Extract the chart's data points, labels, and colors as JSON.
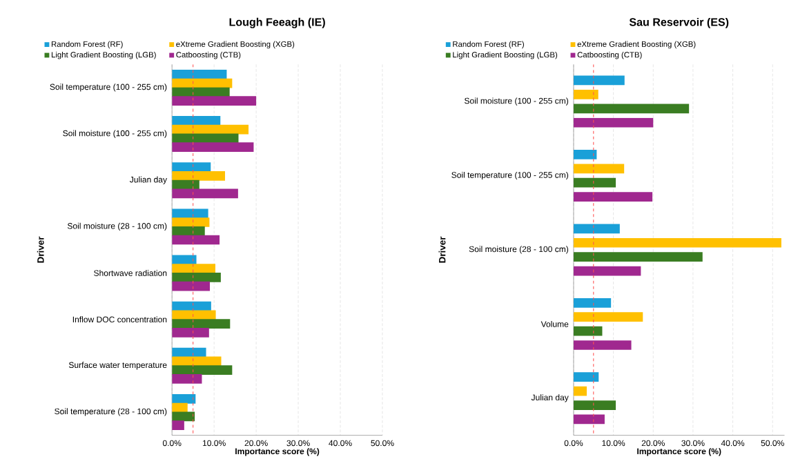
{
  "chart_data": [
    {
      "type": "bar",
      "orientation": "horizontal",
      "title": "Lough Feeagh (IE)",
      "xlabel": "Importance score (%)",
      "ylabel": "Driver",
      "categories": [
        "Soil temperature (100 - 255 cm)",
        "Soil moisture (100 - 255 cm)",
        "Julian day",
        "Soil moisture (28 - 100 cm)",
        "Shortwave radiation",
        "Inflow DOC concentration",
        "Surface water temperature",
        "Soil temperature (28 - 100 cm)"
      ],
      "series": [
        {
          "name": "Random Forest (RF)",
          "color": "#1aa0d8",
          "values": [
            13.0,
            11.5,
            9.2,
            8.6,
            5.8,
            9.3,
            8.1,
            5.6
          ]
        },
        {
          "name": "eXtreme Gradient Boosting (XGB)",
          "color": "#ffc000",
          "values": [
            14.3,
            18.2,
            12.6,
            8.9,
            10.3,
            10.4,
            11.7,
            3.7
          ]
        },
        {
          "name": "Light Gradient Boosting (LGB)",
          "color": "#3a7d22",
          "values": [
            13.7,
            15.8,
            6.5,
            7.8,
            11.6,
            13.8,
            14.3,
            5.4
          ]
        },
        {
          "name": "Catboosting (CTB)",
          "color": "#a0288f",
          "values": [
            20.0,
            19.4,
            15.7,
            11.3,
            9.0,
            8.8,
            7.1,
            2.9
          ]
        }
      ],
      "xlim": [
        0,
        50
      ],
      "xticks": [
        {
          "value": 0,
          "label": "0.0%"
        },
        {
          "value": 10,
          "label": "10.0%"
        },
        {
          "value": 20,
          "label": "20.0%"
        },
        {
          "value": 30,
          "label": "30.0%"
        },
        {
          "value": 40,
          "label": "40.0%"
        },
        {
          "value": 50,
          "label": "50.0%"
        }
      ],
      "grid": "x",
      "legend": "top",
      "ref_lines": [
        {
          "axis": "x",
          "value": 5,
          "color": "#ff5050",
          "line_style": "dashed"
        }
      ]
    },
    {
      "type": "bar",
      "orientation": "horizontal",
      "title": "Sau Reservoir (ES)",
      "xlabel": "Importance score (%)",
      "ylabel": "Driver",
      "categories": [
        "Soil moisture (100 - 255 cm)",
        "Soil temperature (100 - 255 cm)",
        "Soil moisture (28 - 100 cm)",
        "Volume",
        "Julian day"
      ],
      "series": [
        {
          "name": "Random Forest (RF)",
          "color": "#1aa0d8",
          "values": [
            12.8,
            5.8,
            11.6,
            9.4,
            6.3
          ]
        },
        {
          "name": "eXtreme Gradient Boosting (XGB)",
          "color": "#ffc000",
          "values": [
            6.2,
            12.7,
            52.2,
            17.4,
            3.3
          ]
        },
        {
          "name": "Light Gradient Boosting (LGB)",
          "color": "#3a7d22",
          "values": [
            29.0,
            10.6,
            32.4,
            7.2,
            10.6
          ]
        },
        {
          "name": "Catboosting (CTB)",
          "color": "#a0288f",
          "values": [
            20.0,
            19.8,
            16.9,
            14.5,
            7.8
          ]
        }
      ],
      "xlim": [
        0,
        53
      ],
      "xticks": [
        {
          "value": 0,
          "label": "0.0%"
        },
        {
          "value": 10,
          "label": "10.0%"
        },
        {
          "value": 20,
          "label": "20.0%"
        },
        {
          "value": 30,
          "label": "30.0%"
        },
        {
          "value": 40,
          "label": "40.0%"
        },
        {
          "value": 50,
          "label": "50.0%"
        }
      ],
      "grid": "x",
      "legend": "top",
      "ref_lines": [
        {
          "axis": "x",
          "value": 5,
          "color": "#ff5050",
          "line_style": "dashed"
        }
      ]
    }
  ]
}
